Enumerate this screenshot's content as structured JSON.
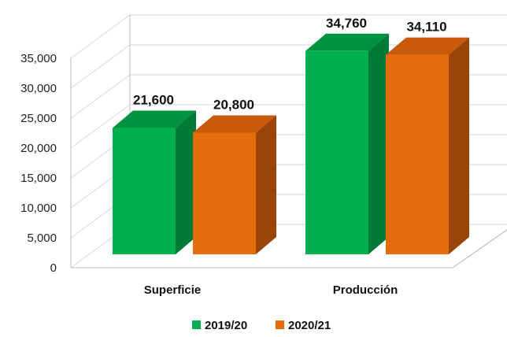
{
  "chart_data": {
    "type": "bar",
    "title": "",
    "xlabel": "",
    "ylabel": "",
    "categories": [
      "Superficie",
      "Producción"
    ],
    "series": [
      {
        "name": "2019/20",
        "values": [
          21600,
          34760
        ],
        "labels": [
          "21,600",
          "34,760"
        ],
        "color": "#00b050",
        "side_color": "#007a38",
        "top_color": "#00933f"
      },
      {
        "name": "2020/21",
        "values": [
          20800,
          34110
        ],
        "labels": [
          "20,800",
          "34,110"
        ],
        "color": "#e46c0a",
        "side_color": "#9a4408",
        "top_color": "#c85a09"
      }
    ],
    "ylim": [
      0,
      35000
    ],
    "yticks": [
      0,
      5000,
      10000,
      15000,
      20000,
      25000,
      30000,
      35000
    ],
    "ytick_labels": [
      "0",
      "5,000",
      "10,000",
      "15,000",
      "20,000",
      "25,000",
      "30,000",
      "35,000"
    ],
    "grid": true,
    "legend_position": "bottom",
    "three_d": true
  }
}
